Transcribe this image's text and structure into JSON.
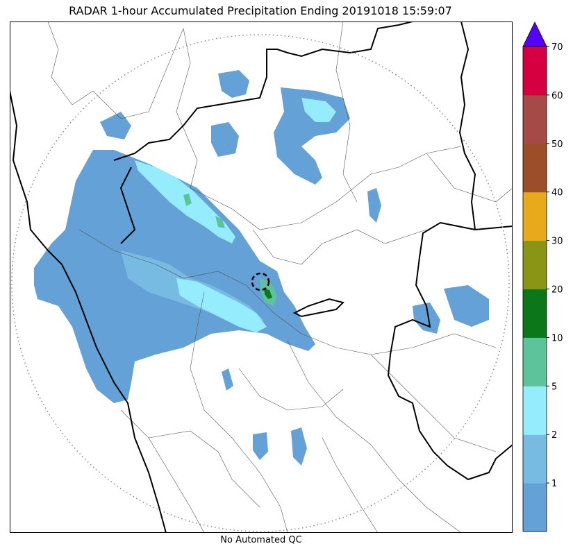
{
  "title": "RADAR 1-hour Accumulated Precipitation Ending 20191018 15:59:07",
  "caption": "No Automated QC",
  "colorbar": {
    "levels": [
      0,
      1,
      2,
      5,
      10,
      20,
      30,
      40,
      50,
      60,
      70
    ],
    "tick_labels": [
      "1",
      "2",
      "5",
      "10",
      "20",
      "30",
      "40",
      "50",
      "60",
      "70"
    ],
    "colors": [
      "#64a1d6",
      "#77bbe2",
      "#95ecfd",
      "#5cc39b",
      "#0c7718",
      "#8a9516",
      "#e8a91b",
      "#9b4e28",
      "#a54a46",
      "#d5003f"
    ],
    "extend_color": "#5500ff"
  },
  "map_colors": {
    "border_thick": "#000000",
    "border_thin": "#555555",
    "range_ring": "#888888"
  }
}
